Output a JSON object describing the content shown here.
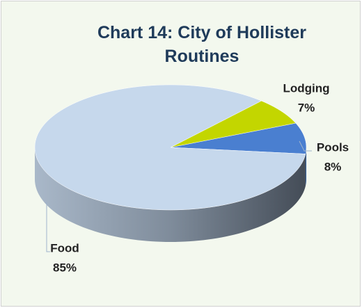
{
  "chart_data": {
    "type": "pie",
    "title": "Chart 14: City of Hollister Routines",
    "categories": [
      "Pools",
      "Lodging",
      "Food"
    ],
    "values": [
      8,
      7,
      85
    ],
    "value_labels": [
      "8%",
      "7%",
      "85%"
    ],
    "colors": [
      "#4a7fd0",
      "#c3d600",
      "#c6d8ec"
    ]
  }
}
